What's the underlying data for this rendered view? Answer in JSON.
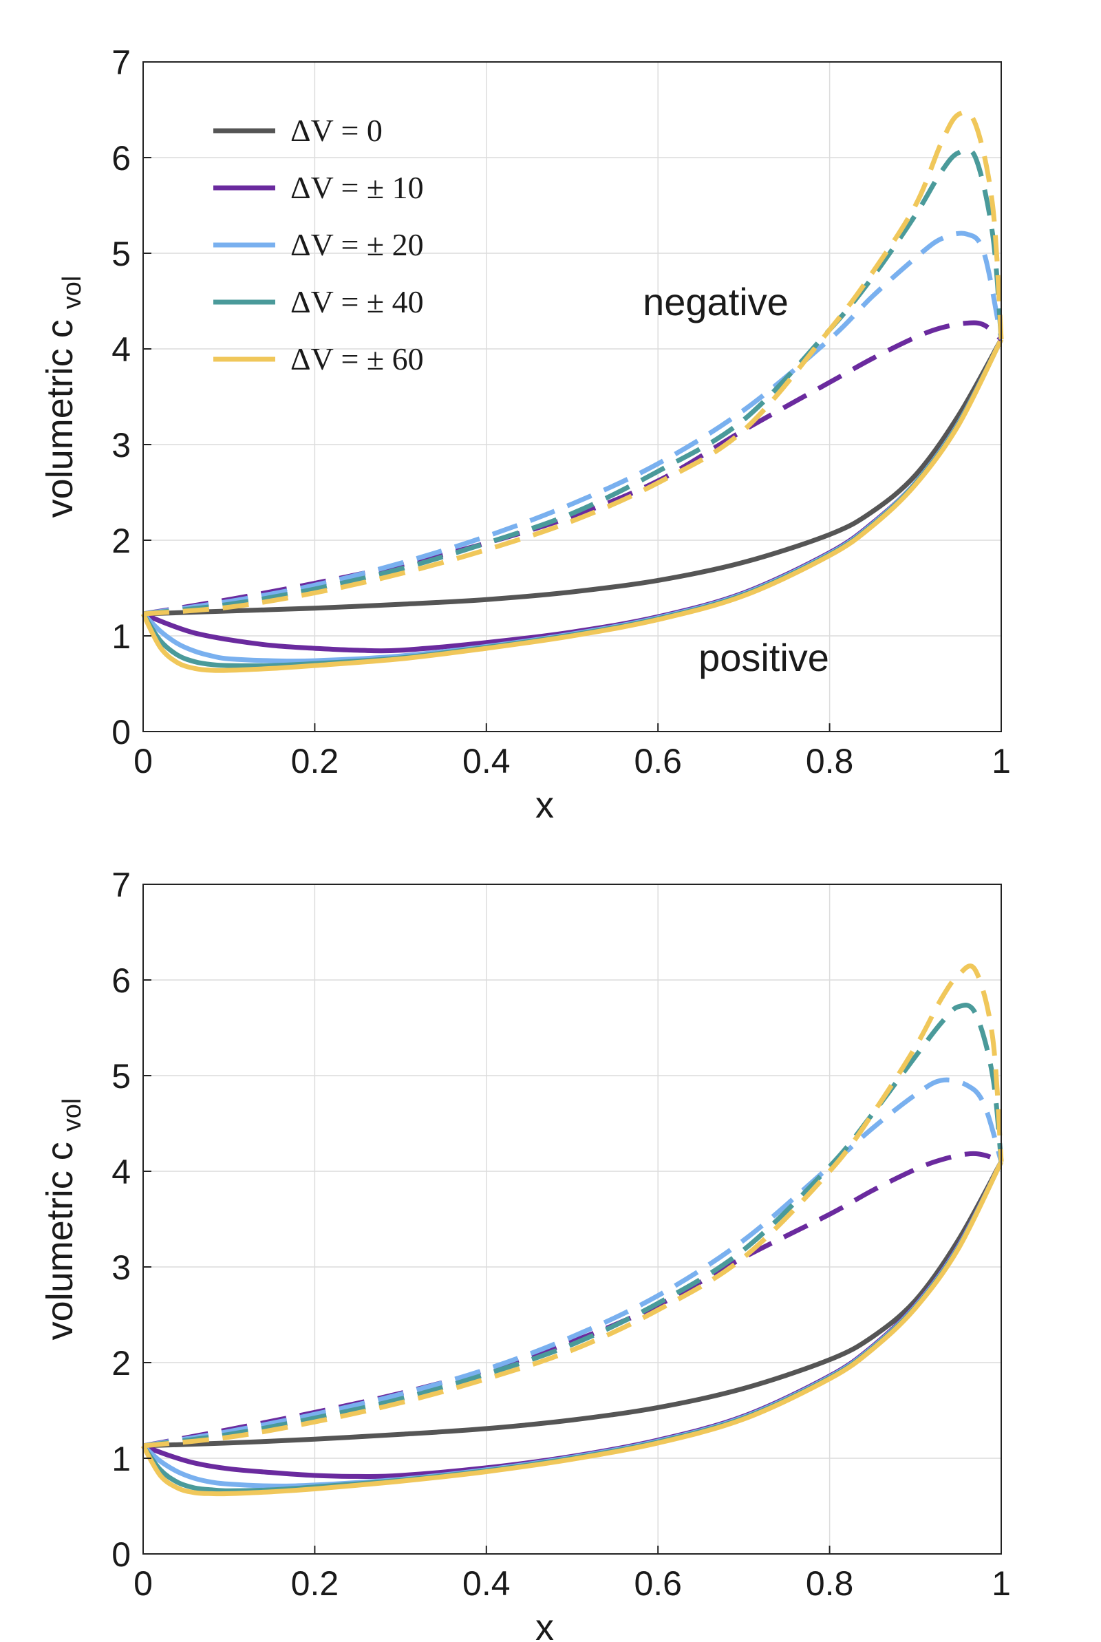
{
  "chart_data": [
    {
      "type": "line",
      "title": "",
      "xlabel": "x",
      "ylabel": "volumetric c",
      "ylabel_subscript": "vol",
      "xlim": [
        0,
        1
      ],
      "ylim": [
        0,
        7
      ],
      "xticks": [
        0,
        0.2,
        0.4,
        0.6,
        0.8,
        1
      ],
      "xtick_labels": [
        "0",
        "0.2",
        "0.4",
        "0.6",
        "0.8",
        "1"
      ],
      "yticks": [
        0,
        1,
        2,
        3,
        4,
        5,
        6,
        7
      ],
      "ytick_labels": [
        "0",
        "1",
        "2",
        "3",
        "4",
        "5",
        "6",
        "7"
      ],
      "grid": true,
      "annotations": [
        {
          "text": "negative",
          "x": 0.67,
          "y": 4.4
        },
        {
          "text": "positive",
          "x": 0.72,
          "y": 0.72
        }
      ],
      "legend": {
        "placement": "top-left",
        "entries": [
          {
            "label": "ΔV = 0",
            "color": "#555555"
          },
          {
            "label": "ΔV = ± 10",
            "color": "#6a2a9e"
          },
          {
            "label": "ΔV = ± 20",
            "color": "#79b0ef"
          },
          {
            "label": "ΔV = ± 40",
            "color": "#4a9a9a"
          },
          {
            "label": "ΔV = ± 60",
            "color": "#f0c75a"
          }
        ]
      },
      "series": [
        {
          "name": "ΔV = 0",
          "color": "#555555",
          "style": "solid",
          "x": [
            0,
            0.1,
            0.2,
            0.3,
            0.4,
            0.5,
            0.6,
            0.7,
            0.8,
            0.85,
            0.9,
            0.95,
            1
          ],
          "y": [
            1.23,
            1.26,
            1.29,
            1.33,
            1.38,
            1.46,
            1.58,
            1.77,
            2.06,
            2.3,
            2.68,
            3.3,
            4.1
          ]
        },
        {
          "name": "ΔV = 10 positive",
          "color": "#6a2a9e",
          "style": "solid",
          "x": [
            0,
            0.03,
            0.06,
            0.1,
            0.15,
            0.2,
            0.25,
            0.3,
            0.4,
            0.5,
            0.6,
            0.7,
            0.8,
            0.85,
            0.9,
            0.95,
            1
          ],
          "y": [
            1.23,
            1.12,
            1.03,
            0.96,
            0.9,
            0.87,
            0.85,
            0.85,
            0.93,
            1.04,
            1.2,
            1.45,
            1.87,
            2.18,
            2.6,
            3.22,
            4.1
          ]
        },
        {
          "name": "ΔV = 20 positive",
          "color": "#79b0ef",
          "style": "solid",
          "x": [
            0,
            0.02,
            0.04,
            0.06,
            0.08,
            0.1,
            0.15,
            0.2,
            0.3,
            0.4,
            0.5,
            0.6,
            0.7,
            0.8,
            0.85,
            0.9,
            0.95,
            1
          ],
          "y": [
            1.23,
            1.05,
            0.92,
            0.84,
            0.79,
            0.76,
            0.74,
            0.74,
            0.79,
            0.89,
            1.02,
            1.19,
            1.44,
            1.86,
            2.17,
            2.6,
            3.22,
            4.1
          ]
        },
        {
          "name": "ΔV = 40 positive",
          "color": "#4a9a9a",
          "style": "solid",
          "x": [
            0,
            0.02,
            0.04,
            0.06,
            0.08,
            0.1,
            0.15,
            0.2,
            0.3,
            0.4,
            0.5,
            0.6,
            0.7,
            0.8,
            0.85,
            0.9,
            0.95,
            1
          ],
          "y": [
            1.23,
            0.95,
            0.8,
            0.73,
            0.7,
            0.69,
            0.69,
            0.71,
            0.77,
            0.88,
            1.01,
            1.18,
            1.43,
            1.85,
            2.16,
            2.59,
            3.21,
            4.1
          ]
        },
        {
          "name": "ΔV = 60 positive",
          "color": "#f0c75a",
          "style": "solid",
          "x": [
            0,
            0.02,
            0.04,
            0.06,
            0.08,
            0.1,
            0.15,
            0.2,
            0.3,
            0.4,
            0.5,
            0.6,
            0.7,
            0.8,
            0.85,
            0.9,
            0.95,
            1
          ],
          "y": [
            1.23,
            0.88,
            0.72,
            0.66,
            0.64,
            0.64,
            0.66,
            0.69,
            0.76,
            0.87,
            1.0,
            1.17,
            1.42,
            1.84,
            2.15,
            2.58,
            3.2,
            4.1
          ]
        },
        {
          "name": "ΔV = 10 negative",
          "color": "#6a2a9e",
          "style": "dashed",
          "x": [
            0,
            0.1,
            0.2,
            0.3,
            0.4,
            0.5,
            0.6,
            0.7,
            0.8,
            0.85,
            0.9,
            0.93,
            0.96,
            0.98,
            1
          ],
          "y": [
            1.23,
            1.38,
            1.55,
            1.74,
            1.97,
            2.25,
            2.62,
            3.15,
            3.65,
            3.9,
            4.12,
            4.22,
            4.27,
            4.25,
            4.1
          ]
        },
        {
          "name": "ΔV = 20 negative",
          "color": "#79b0ef",
          "style": "dashed",
          "x": [
            0,
            0.1,
            0.2,
            0.3,
            0.4,
            0.5,
            0.6,
            0.7,
            0.8,
            0.85,
            0.9,
            0.93,
            0.96,
            0.98,
            1
          ],
          "y": [
            1.23,
            1.36,
            1.53,
            1.76,
            2.04,
            2.38,
            2.8,
            3.36,
            4.1,
            4.55,
            4.95,
            5.15,
            5.2,
            5.0,
            4.1
          ]
        },
        {
          "name": "ΔV = 40 negative",
          "color": "#4a9a9a",
          "style": "dashed",
          "x": [
            0,
            0.1,
            0.2,
            0.3,
            0.4,
            0.5,
            0.6,
            0.7,
            0.8,
            0.85,
            0.9,
            0.93,
            0.95,
            0.97,
            0.99,
            1
          ],
          "y": [
            1.23,
            1.33,
            1.49,
            1.7,
            1.97,
            2.28,
            2.72,
            3.26,
            4.2,
            4.75,
            5.4,
            5.85,
            6.05,
            6.0,
            5.2,
            4.1
          ]
        },
        {
          "name": "ΔV = 60 negative",
          "color": "#f0c75a",
          "style": "dashed",
          "x": [
            0,
            0.1,
            0.2,
            0.3,
            0.4,
            0.5,
            0.6,
            0.7,
            0.8,
            0.85,
            0.9,
            0.93,
            0.95,
            0.97,
            0.99,
            1
          ],
          "y": [
            1.23,
            1.3,
            1.45,
            1.65,
            1.9,
            2.2,
            2.6,
            3.15,
            4.2,
            4.8,
            5.5,
            6.15,
            6.45,
            6.35,
            5.5,
            4.1
          ]
        }
      ]
    },
    {
      "type": "line",
      "title": "",
      "xlabel": "x",
      "ylabel": "volumetric c",
      "ylabel_subscript": "vol",
      "xlim": [
        0,
        1
      ],
      "ylim": [
        0,
        7
      ],
      "xticks": [
        0,
        0.2,
        0.4,
        0.6,
        0.8,
        1
      ],
      "xtick_labels": [
        "0",
        "0.2",
        "0.4",
        "0.6",
        "0.8",
        "1"
      ],
      "yticks": [
        0,
        1,
        2,
        3,
        4,
        5,
        6,
        7
      ],
      "ytick_labels": [
        "0",
        "1",
        "2",
        "3",
        "4",
        "5",
        "6",
        "7"
      ],
      "grid": true,
      "annotations": [],
      "series": [
        {
          "name": "ΔV = 0",
          "color": "#555555",
          "style": "solid",
          "x": [
            0,
            0.1,
            0.2,
            0.3,
            0.4,
            0.5,
            0.6,
            0.7,
            0.8,
            0.85,
            0.9,
            0.95,
            1
          ],
          "y": [
            1.13,
            1.16,
            1.2,
            1.25,
            1.31,
            1.4,
            1.53,
            1.73,
            2.03,
            2.27,
            2.65,
            3.28,
            4.1
          ]
        },
        {
          "name": "ΔV = 10 positive",
          "color": "#6a2a9e",
          "style": "solid",
          "x": [
            0,
            0.03,
            0.06,
            0.1,
            0.15,
            0.2,
            0.25,
            0.3,
            0.4,
            0.5,
            0.6,
            0.7,
            0.8,
            0.85,
            0.9,
            0.95,
            1
          ],
          "y": [
            1.13,
            1.03,
            0.95,
            0.89,
            0.85,
            0.82,
            0.81,
            0.82,
            0.9,
            1.02,
            1.19,
            1.44,
            1.86,
            2.17,
            2.6,
            3.22,
            4.1
          ]
        },
        {
          "name": "ΔV = 20 positive",
          "color": "#79b0ef",
          "style": "solid",
          "x": [
            0,
            0.02,
            0.04,
            0.06,
            0.08,
            0.1,
            0.15,
            0.2,
            0.3,
            0.4,
            0.5,
            0.6,
            0.7,
            0.8,
            0.85,
            0.9,
            0.95,
            1
          ],
          "y": [
            1.13,
            0.97,
            0.86,
            0.79,
            0.75,
            0.73,
            0.71,
            0.72,
            0.78,
            0.88,
            1.01,
            1.18,
            1.43,
            1.85,
            2.16,
            2.59,
            3.21,
            4.1
          ]
        },
        {
          "name": "ΔV = 40 positive",
          "color": "#4a9a9a",
          "style": "solid",
          "x": [
            0,
            0.02,
            0.04,
            0.06,
            0.08,
            0.1,
            0.15,
            0.2,
            0.3,
            0.4,
            0.5,
            0.6,
            0.7,
            0.8,
            0.85,
            0.9,
            0.95,
            1
          ],
          "y": [
            1.13,
            0.88,
            0.75,
            0.69,
            0.67,
            0.66,
            0.67,
            0.7,
            0.77,
            0.87,
            1.0,
            1.17,
            1.42,
            1.84,
            2.15,
            2.58,
            3.2,
            4.1
          ]
        },
        {
          "name": "ΔV = 60 positive",
          "color": "#f0c75a",
          "style": "solid",
          "x": [
            0,
            0.02,
            0.04,
            0.06,
            0.08,
            0.1,
            0.15,
            0.2,
            0.3,
            0.4,
            0.5,
            0.6,
            0.7,
            0.8,
            0.85,
            0.9,
            0.95,
            1
          ],
          "y": [
            1.13,
            0.82,
            0.69,
            0.64,
            0.63,
            0.63,
            0.65,
            0.68,
            0.76,
            0.86,
            0.99,
            1.16,
            1.41,
            1.83,
            2.14,
            2.57,
            3.19,
            4.1
          ]
        },
        {
          "name": "ΔV = 10 negative",
          "color": "#6a2a9e",
          "style": "dashed",
          "x": [
            0,
            0.1,
            0.2,
            0.3,
            0.4,
            0.5,
            0.6,
            0.7,
            0.8,
            0.85,
            0.9,
            0.93,
            0.96,
            0.98,
            1
          ],
          "y": [
            1.13,
            1.3,
            1.48,
            1.68,
            1.92,
            2.22,
            2.6,
            3.1,
            3.55,
            3.8,
            4.02,
            4.12,
            4.18,
            4.17,
            4.1
          ]
        },
        {
          "name": "ΔV = 20 negative",
          "color": "#79b0ef",
          "style": "dashed",
          "x": [
            0,
            0.1,
            0.2,
            0.3,
            0.4,
            0.5,
            0.6,
            0.7,
            0.8,
            0.85,
            0.9,
            0.93,
            0.96,
            0.98,
            1
          ],
          "y": [
            1.13,
            1.28,
            1.46,
            1.67,
            1.93,
            2.27,
            2.7,
            3.28,
            4.05,
            4.45,
            4.8,
            4.95,
            4.9,
            4.7,
            4.1
          ]
        },
        {
          "name": "ΔV = 40 negative",
          "color": "#4a9a9a",
          "style": "dashed",
          "x": [
            0,
            0.1,
            0.2,
            0.3,
            0.4,
            0.5,
            0.6,
            0.7,
            0.8,
            0.85,
            0.9,
            0.93,
            0.95,
            0.97,
            0.99,
            1
          ],
          "y": [
            1.13,
            1.25,
            1.42,
            1.62,
            1.88,
            2.19,
            2.62,
            3.18,
            4.05,
            4.6,
            5.2,
            5.55,
            5.72,
            5.65,
            5.0,
            4.1
          ]
        },
        {
          "name": "ΔV = 60 negative",
          "color": "#f0c75a",
          "style": "dashed",
          "x": [
            0,
            0.1,
            0.2,
            0.3,
            0.4,
            0.5,
            0.6,
            0.7,
            0.8,
            0.85,
            0.9,
            0.93,
            0.95,
            0.97,
            0.99,
            1
          ],
          "y": [
            1.13,
            1.22,
            1.38,
            1.58,
            1.83,
            2.13,
            2.55,
            3.1,
            4.0,
            4.6,
            5.3,
            5.8,
            6.05,
            6.1,
            5.4,
            4.1
          ]
        }
      ]
    }
  ]
}
